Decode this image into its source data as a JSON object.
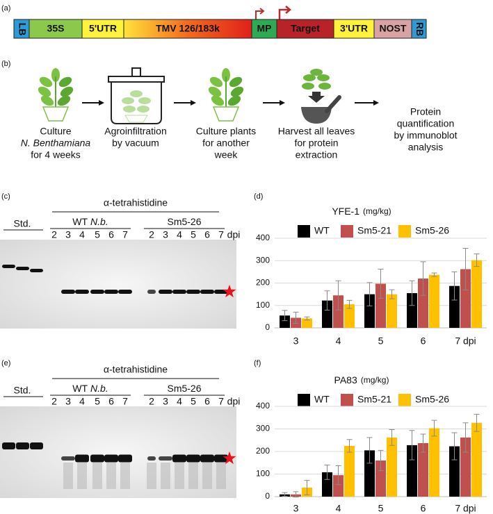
{
  "panel_labels": [
    "(a)",
    "(b)",
    "(c)",
    "(d)",
    "(e)",
    "(f)"
  ],
  "construct": {
    "segments": [
      "LB",
      "35S",
      "5'UTR",
      "TMV 126/183k",
      "MP",
      "Target",
      "3'UTR",
      "NOST",
      "RB"
    ]
  },
  "workflow": {
    "steps": [
      [
        "Culture",
        "N. Benthamiana",
        "for 4 weeks"
      ],
      [
        "Agroinfiltration",
        "by vacuum"
      ],
      [
        "Culture plants",
        "for another",
        "week"
      ],
      [
        "Harvest all leaves",
        "for protein",
        "extraction"
      ],
      [
        "Protein",
        "quantification",
        "by immunoblot",
        "analysis"
      ]
    ]
  },
  "blots": [
    {
      "antibody": "α-tetrahistidine",
      "standard": "Std.",
      "unit": "dpi",
      "groups": [
        {
          "name": "WT",
          "species": "N.b.",
          "lanes": [
            "2",
            "3",
            "4",
            "5",
            "6",
            "7"
          ]
        },
        {
          "name": "Sm5-26",
          "lanes": [
            "2",
            "3",
            "4",
            "5",
            "6",
            "7"
          ]
        }
      ]
    },
    {
      "antibody": "α-tetrahistidine",
      "standard": "Std.",
      "unit": "dpi",
      "groups": [
        {
          "name": "WT",
          "species": "N.b.",
          "lanes": [
            "2",
            "3",
            "4",
            "5",
            "6",
            "7"
          ]
        },
        {
          "name": "Sm5-26",
          "lanes": [
            "2",
            "3",
            "4",
            "5",
            "6",
            "7"
          ]
        }
      ]
    }
  ],
  "chart_data": [
    {
      "type": "bar",
      "title": "YFE-1",
      "unit": "(mg/kg)",
      "categories": [
        "3",
        "4",
        "5",
        "6",
        "7 dpi"
      ],
      "series": [
        {
          "name": "WT",
          "color": "#000000",
          "values": [
            55,
            122,
            150,
            155,
            187
          ],
          "errors": [
            23,
            43,
            52,
            55,
            63
          ]
        },
        {
          "name": "Sm5-21",
          "color": "#c0504d",
          "values": [
            45,
            145,
            197,
            220,
            262
          ],
          "errors": [
            25,
            65,
            65,
            75,
            93
          ]
        },
        {
          "name": "Sm5-26",
          "color": "#ffc000",
          "values": [
            42,
            105,
            150,
            237,
            302
          ],
          "errors": [
            7,
            18,
            20,
            8,
            28
          ]
        }
      ],
      "ylim": [
        0,
        400
      ],
      "yticks": [
        0,
        100,
        200,
        300,
        400
      ],
      "grid": true
    },
    {
      "type": "bar",
      "title": "PA83",
      "unit": "(mg/kg)",
      "categories": [
        "3",
        "4",
        "5",
        "6",
        "7 dpi"
      ],
      "series": [
        {
          "name": "WT",
          "color": "#000000",
          "values": [
            10,
            108,
            205,
            228,
            223
          ],
          "errors": [
            8,
            32,
            57,
            65,
            60
          ]
        },
        {
          "name": "Sm5-21",
          "color": "#c0504d",
          "values": [
            10,
            95,
            160,
            237,
            262
          ],
          "errors": [
            12,
            42,
            45,
            40,
            65
          ]
        },
        {
          "name": "Sm5-26",
          "color": "#ffc000",
          "values": [
            40,
            225,
            262,
            303,
            327
          ],
          "errors": [
            32,
            28,
            35,
            35,
            38
          ]
        }
      ],
      "ylim": [
        0,
        400
      ],
      "yticks": [
        0,
        100,
        200,
        300,
        400
      ],
      "grid": true
    }
  ]
}
